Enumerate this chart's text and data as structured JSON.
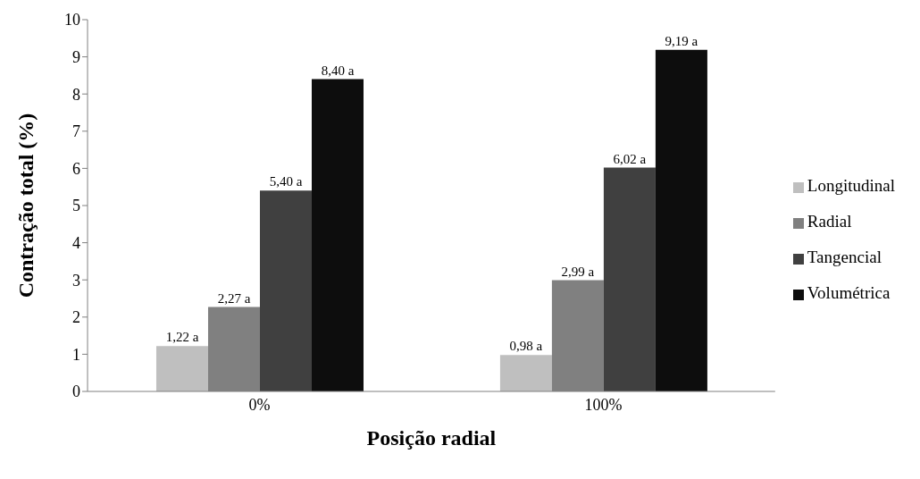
{
  "chart_data": {
    "type": "bar",
    "xlabel": "Posição radial",
    "ylabel": "Contração total (%)",
    "categories": [
      "0%",
      "100%"
    ],
    "series": [
      {
        "name": "Longitudinal",
        "color": "#bfbfbf",
        "values": [
          1.22,
          0.98
        ],
        "value_labels": [
          "1,22 a",
          "0,98 a"
        ]
      },
      {
        "name": "Radial",
        "color": "#808080",
        "values": [
          2.27,
          2.99
        ],
        "value_labels": [
          "2,27 a",
          "2,99 a"
        ]
      },
      {
        "name": "Tangencial",
        "color": "#404040",
        "values": [
          5.4,
          6.02
        ],
        "value_labels": [
          "5,40 a",
          "6,02 a"
        ]
      },
      {
        "name": "Volumétrica",
        "color": "#0d0d0d",
        "values": [
          8.4,
          9.19
        ],
        "value_labels": [
          "8,40 a",
          "9,19 a"
        ]
      }
    ],
    "ylim": [
      0,
      10
    ],
    "yticks": [
      0,
      1,
      2,
      3,
      4,
      5,
      6,
      7,
      8,
      9,
      10
    ],
    "grid": false,
    "legend": "right"
  }
}
